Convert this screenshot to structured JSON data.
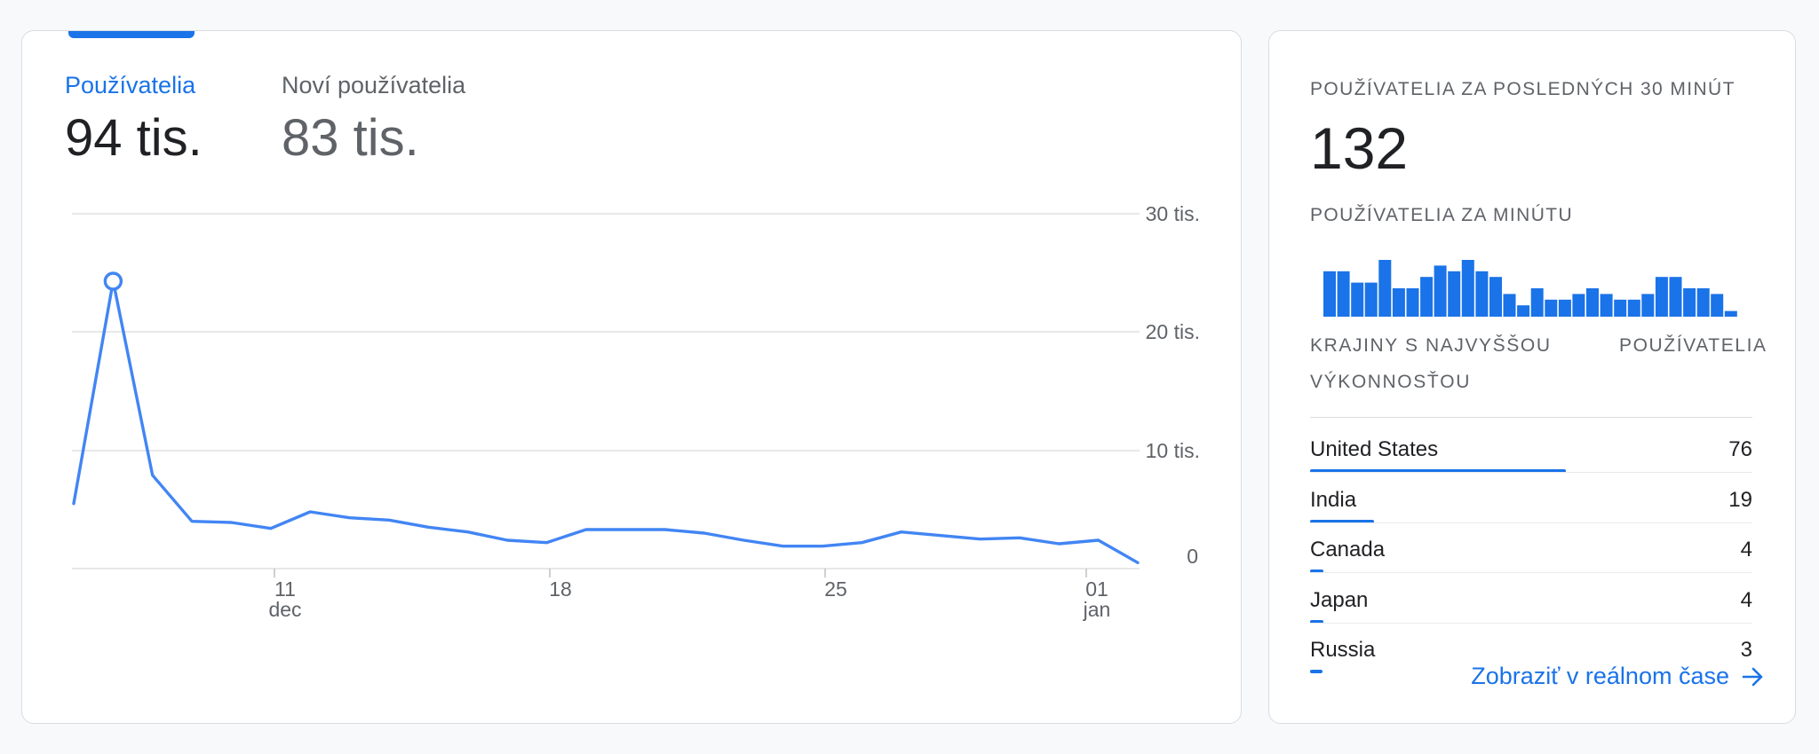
{
  "metrics": {
    "users": {
      "label": "Používatelia",
      "value": "94 tis."
    },
    "new_users": {
      "label": "Noví používatelia",
      "value": "83 tis."
    }
  },
  "chart_data": {
    "type": "line",
    "y_ticks": [
      "30 tis.",
      "20 tis.",
      "10 tis.",
      "0"
    ],
    "x_ticks": [
      {
        "day": "11",
        "month": "dec"
      },
      {
        "day": "18",
        "month": ""
      },
      {
        "day": "25",
        "month": ""
      },
      {
        "day": "01",
        "month": "jan"
      }
    ],
    "ylim": [
      0,
      30000
    ],
    "series": [
      {
        "values": [
          5500,
          24300,
          7900,
          4000,
          3900,
          3400,
          4800,
          4300,
          4100,
          3500,
          3100,
          2400,
          2200,
          3300,
          3300,
          3300,
          3000,
          2400,
          1900,
          1900,
          2200,
          3100,
          2800,
          2500,
          2600,
          2100,
          2400,
          500
        ],
        "highlight_index": 1,
        "color": "#4285f4"
      }
    ]
  },
  "realtime": {
    "title": "POUŽÍVATELIA ZA POSLEDNÝCH 30 MINÚT",
    "count": "132",
    "per_minute_label": "POUŽÍVATELIA ZA MINÚTU",
    "per_minute_values": [
      8,
      8,
      6,
      6,
      10,
      5,
      5,
      7,
      9,
      8,
      10,
      8,
      7,
      4,
      2,
      5,
      3,
      3,
      4,
      5,
      4,
      3,
      3,
      4,
      7,
      7,
      5,
      5,
      4,
      1
    ],
    "table": {
      "col_country": "KRAJINY S NAJVYŠŠOU VÝKONNOSŤOU",
      "col_users": "POUŽÍVATELIA",
      "rows": [
        {
          "country": "United States",
          "value": "76",
          "share": 0.578
        },
        {
          "country": "India",
          "value": "19",
          "share": 0.145
        },
        {
          "country": "Canada",
          "value": "4",
          "share": 0.03
        },
        {
          "country": "Japan",
          "value": "4",
          "share": 0.03
        },
        {
          "country": "Russia",
          "value": "3",
          "share": 0.023
        }
      ]
    },
    "link_label": "Zobraziť v reálnom čase"
  },
  "colors": {
    "accent": "#1a73e8",
    "line": "#4285f4"
  }
}
